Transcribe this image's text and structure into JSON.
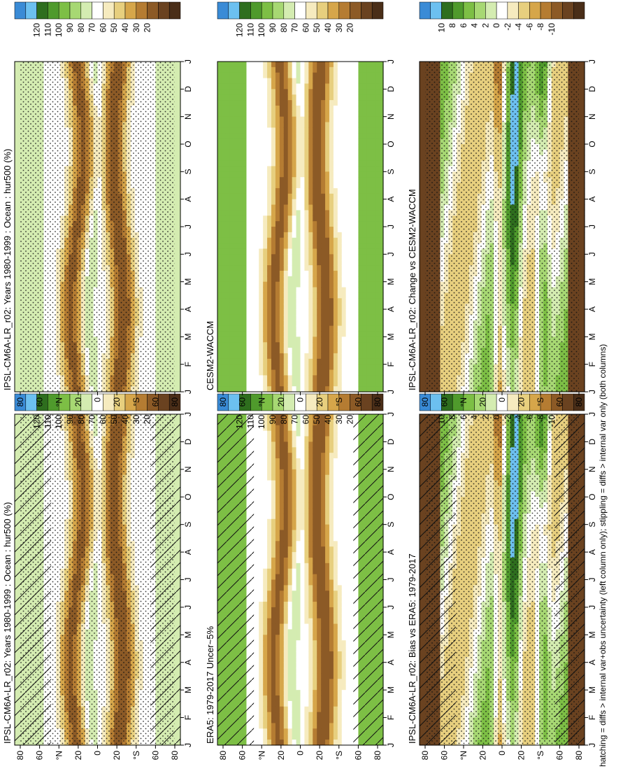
{
  "figure": {
    "footer": "hatching = diffs > internal var+obs uncertainty (left column only); stippling = diffs > internal var only (both columns)"
  },
  "chart_data": [
    {
      "type": "heatmap",
      "title": "IPSL-CM6A-LR_r02: Years 1980-1999 : Ocean : hur500 (%)",
      "x_ticks": [
        "J",
        "F",
        "M",
        "A",
        "M",
        "J",
        "J",
        "A",
        "S",
        "O",
        "N",
        "D",
        "J"
      ],
      "y_ticks": [
        "80",
        "60",
        "°N",
        "20",
        "0",
        "20",
        "°S",
        "60",
        "80"
      ],
      "colorbar": [
        "120",
        "110",
        "100",
        "90",
        "80",
        "70",
        "60",
        "50",
        "40",
        "30",
        "20"
      ],
      "stippling": true,
      "hatching": true
    },
    {
      "type": "heatmap",
      "title": "IPSL-CM6A-LR_r02: Years 1980-1999 : Ocean : hur500 (%)",
      "x_ticks": [
        "J",
        "F",
        "M",
        "A",
        "M",
        "J",
        "J",
        "A",
        "S",
        "O",
        "N",
        "D",
        "J"
      ],
      "y_ticks": [
        "80",
        "60",
        "°N",
        "20",
        "0",
        "20",
        "°S",
        "60",
        "80"
      ],
      "colorbar": [
        "120",
        "110",
        "100",
        "90",
        "80",
        "70",
        "60",
        "50",
        "40",
        "30",
        "20"
      ],
      "stippling": true,
      "hatching": false
    },
    {
      "type": "heatmap",
      "title": "ERA5: 1979-2017 Uncer~5%",
      "x_ticks": [
        "J",
        "F",
        "M",
        "A",
        "M",
        "J",
        "J",
        "A",
        "S",
        "O",
        "N",
        "D",
        "J"
      ],
      "y_ticks": [
        "80",
        "60",
        "°N",
        "20",
        "0",
        "20",
        "°S",
        "60",
        "80"
      ],
      "colorbar": [
        "120",
        "110",
        "100",
        "90",
        "80",
        "70",
        "60",
        "50",
        "40",
        "30",
        "20"
      ],
      "stippling": false,
      "hatching": true
    },
    {
      "type": "heatmap",
      "title": "CESM2-WACCM",
      "x_ticks": [
        "J",
        "F",
        "M",
        "A",
        "M",
        "J",
        "J",
        "A",
        "S",
        "O",
        "N",
        "D",
        "J"
      ],
      "y_ticks": [
        "80",
        "60",
        "°N",
        "20",
        "0",
        "20",
        "°S",
        "60",
        "80"
      ],
      "colorbar": [
        "120",
        "110",
        "100",
        "90",
        "80",
        "70",
        "60",
        "50",
        "40",
        "30",
        "20"
      ],
      "stippling": false,
      "hatching": false
    },
    {
      "type": "heatmap",
      "title": "IPSL-CM6A-LR_r02: Bias vs ERA5: 1979-2017",
      "x_ticks": [
        "J",
        "F",
        "M",
        "A",
        "M",
        "J",
        "J",
        "A",
        "S",
        "O",
        "N",
        "D",
        "J"
      ],
      "y_ticks": [
        "80",
        "60",
        "°N",
        "20",
        "0",
        "20",
        "°S",
        "60",
        "80"
      ],
      "colorbar": [
        "10",
        "8",
        "6",
        "4",
        "2",
        "0",
        "-2",
        "-4",
        "-6",
        "-8",
        "-10"
      ],
      "stippling": true,
      "hatching": true
    },
    {
      "type": "heatmap",
      "title": "IPSL-CM6A-LR_r02: Change vs CESM2-WACCM",
      "x_ticks": [
        "J",
        "F",
        "M",
        "A",
        "M",
        "J",
        "J",
        "A",
        "S",
        "O",
        "N",
        "D",
        "J"
      ],
      "y_ticks": [
        "80",
        "60",
        "°N",
        "20",
        "0",
        "20",
        "°S",
        "60",
        "80"
      ],
      "colorbar": [
        "10",
        "8",
        "6",
        "4",
        "2",
        "0",
        "-2",
        "-4",
        "-6",
        "-8",
        "-10"
      ],
      "stippling": true,
      "hatching": false
    }
  ]
}
